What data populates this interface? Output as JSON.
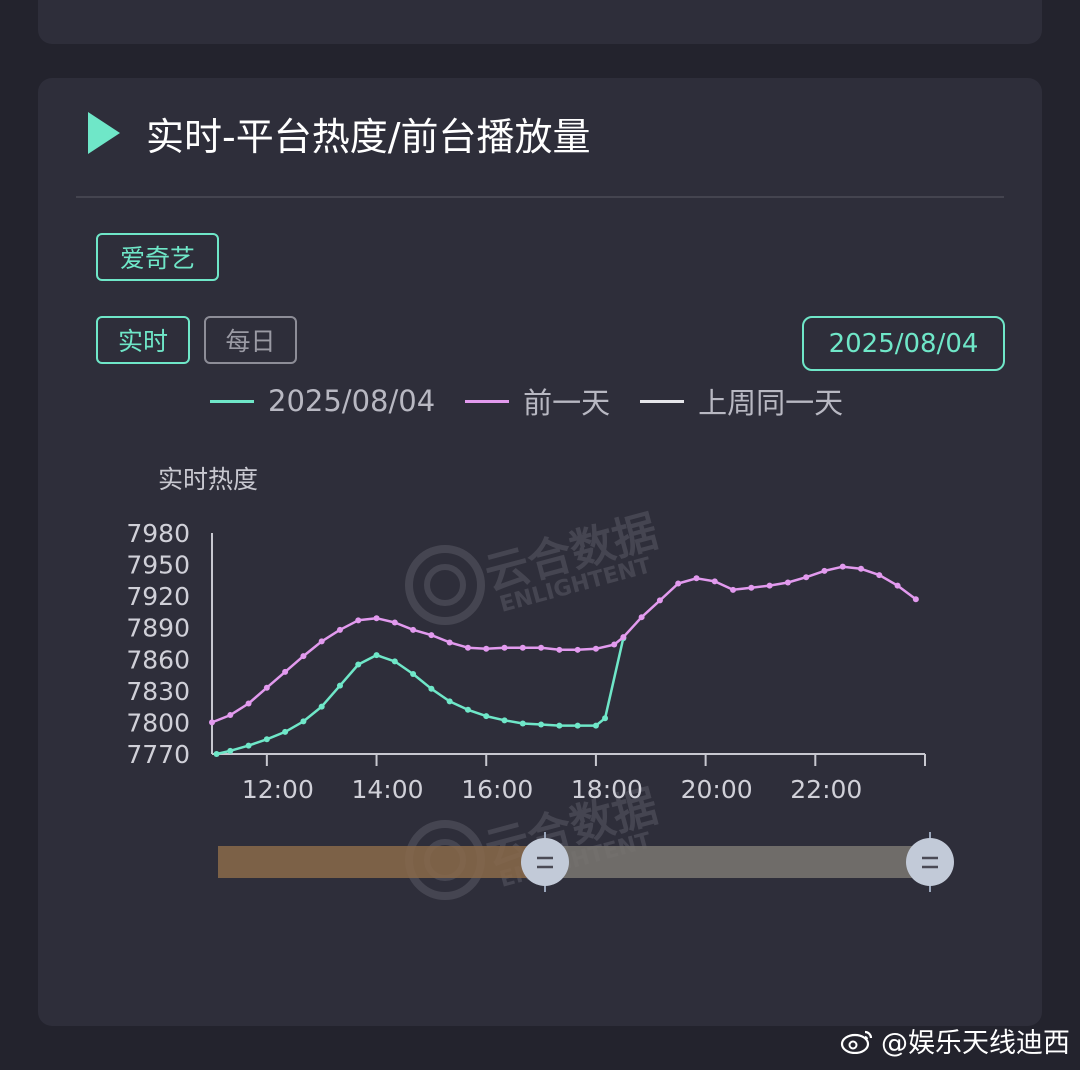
{
  "header": {
    "title": "实时-平台热度/前台播放量"
  },
  "filters": {
    "platform": "爱奇艺",
    "mode_realtime": "实时",
    "mode_daily": "每日",
    "date": "2025/08/04"
  },
  "legend": [
    {
      "name": "2025/08/04",
      "color": "#6fe7c8"
    },
    {
      "name": "前一天",
      "color": "#e29aee"
    },
    {
      "name": "上周同一天",
      "color": "#e6e6ea"
    }
  ],
  "watermark": {
    "cn": "云合数据",
    "en": "ENLIGHTENT"
  },
  "footer": {
    "text": "@娱乐天线迪西"
  },
  "colors": {
    "accent": "#6fe7c8",
    "background": "#23232d",
    "card": "#2e2e3a"
  },
  "chart_data": {
    "type": "line",
    "ylabel": "实时热度",
    "ylim": [
      7770,
      7980
    ],
    "y_ticks": [
      "7980",
      "7950",
      "7920",
      "7890",
      "7860",
      "7830",
      "7800",
      "7770"
    ],
    "xlim": [
      "11:00",
      "24:00"
    ],
    "x_ticks": [
      "12:00",
      "14:00",
      "16:00",
      "18:00",
      "20:00",
      "22:00"
    ],
    "grid": false,
    "legend_position": "top",
    "series": [
      {
        "name": "2025/08/04",
        "color": "#6fe7c8",
        "x": [
          "11:05",
          "11:20",
          "11:40",
          "12:00",
          "12:20",
          "12:40",
          "13:00",
          "13:20",
          "13:40",
          "14:00",
          "14:20",
          "14:40",
          "15:00",
          "15:20",
          "15:40",
          "16:00",
          "16:20",
          "16:40",
          "17:00",
          "17:20",
          "17:40",
          "18:00",
          "18:10",
          "18:30"
        ],
        "y": [
          7770,
          7773,
          7778,
          7784,
          7791,
          7801,
          7815,
          7835,
          7855,
          7864,
          7858,
          7846,
          7832,
          7820,
          7812,
          7806,
          7802,
          7799,
          7798,
          7797,
          7797,
          7797,
          7804,
          7880
        ]
      },
      {
        "name": "前一天",
        "color": "#e29aee",
        "x": [
          "11:00",
          "11:20",
          "11:40",
          "12:00",
          "12:20",
          "12:40",
          "13:00",
          "13:20",
          "13:40",
          "14:00",
          "14:20",
          "14:40",
          "15:00",
          "15:20",
          "15:40",
          "16:00",
          "16:20",
          "16:40",
          "17:00",
          "17:20",
          "17:40",
          "18:00",
          "18:20",
          "18:30",
          "18:50",
          "19:10",
          "19:30",
          "19:50",
          "20:10",
          "20:30",
          "20:50",
          "21:10",
          "21:30",
          "21:50",
          "22:10",
          "22:30",
          "22:50",
          "23:10",
          "23:30",
          "23:50"
        ],
        "y": [
          7800,
          7807,
          7818,
          7833,
          7848,
          7863,
          7877,
          7888,
          7897,
          7899,
          7895,
          7888,
          7883,
          7876,
          7871,
          7870,
          7871,
          7871,
          7871,
          7869,
          7869,
          7870,
          7874,
          7881,
          7900,
          7916,
          7932,
          7937,
          7934,
          7926,
          7928,
          7930,
          7933,
          7938,
          7944,
          7948,
          7946,
          7940,
          7930,
          7917
        ]
      }
    ]
  }
}
